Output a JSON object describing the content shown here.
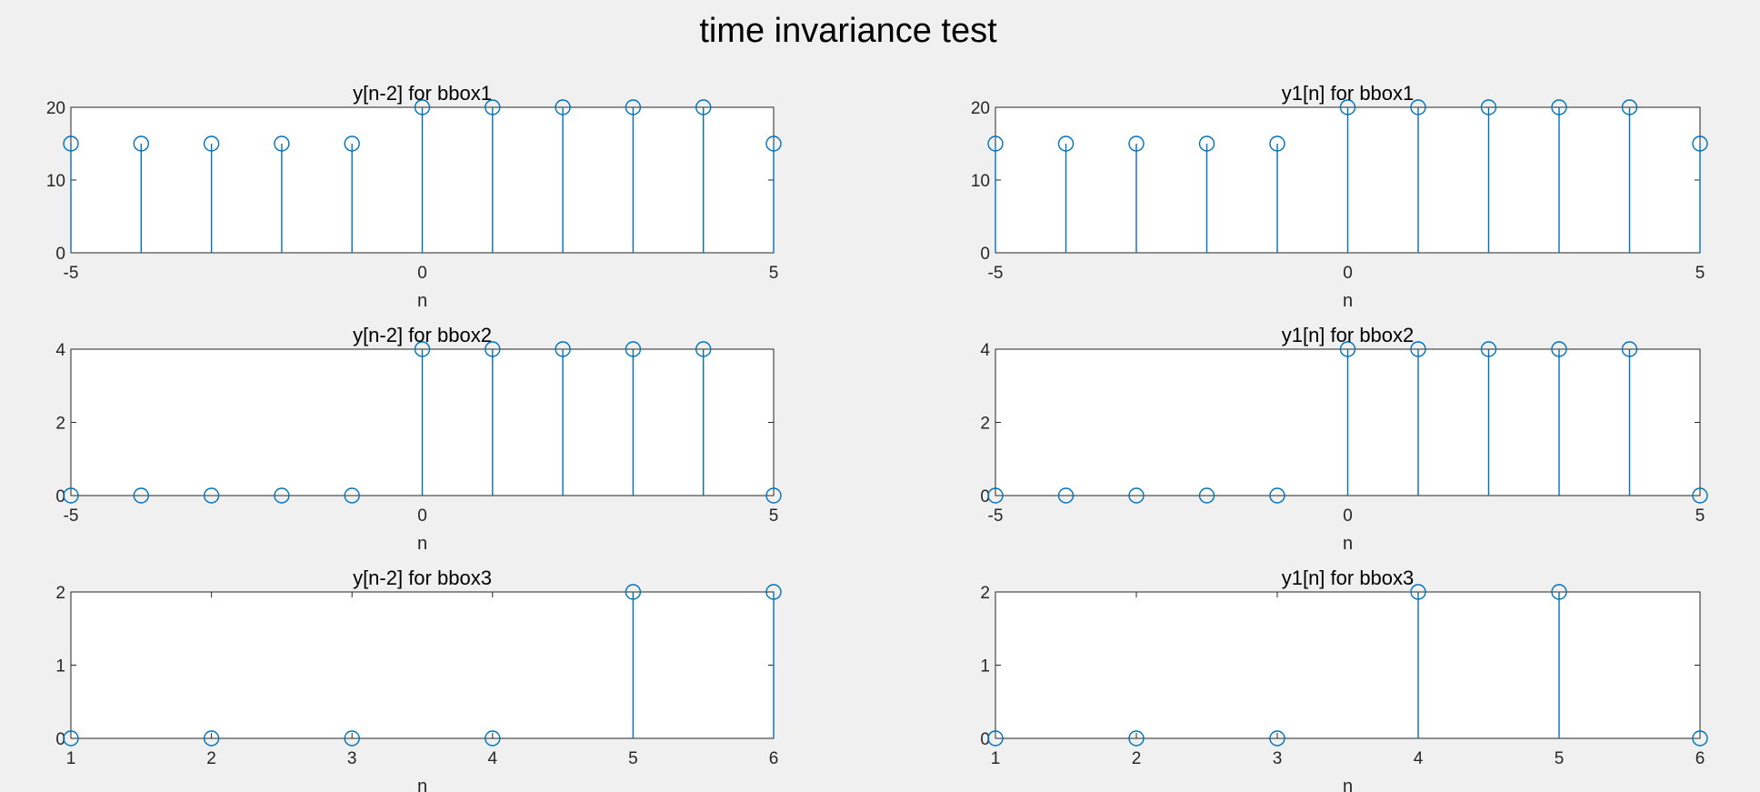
{
  "figure": {
    "title": "time invariance test"
  },
  "colors": {
    "stem": "#0072bd",
    "background": "#f0f0f0",
    "axes_bg": "#ffffff",
    "axis_line": "#262626"
  },
  "chart_data": [
    {
      "type": "stem",
      "title": "y[n-2] for bbox1",
      "xlabel": "n",
      "ylabel": "",
      "x": [
        -5,
        -4,
        -3,
        -2,
        -1,
        0,
        1,
        2,
        3,
        4,
        5
      ],
      "y": [
        15,
        15,
        15,
        15,
        15,
        20,
        20,
        20,
        20,
        20,
        15
      ],
      "xlim": [
        -5,
        5
      ],
      "ylim": [
        0,
        20
      ],
      "xticks": [
        -5,
        0,
        5
      ],
      "yticks": [
        0,
        10,
        20
      ],
      "grid": false
    },
    {
      "type": "stem",
      "title": "y1[n] for bbox1",
      "xlabel": "n",
      "ylabel": "",
      "x": [
        -5,
        -4,
        -3,
        -2,
        -1,
        0,
        1,
        2,
        3,
        4,
        5
      ],
      "y": [
        15,
        15,
        15,
        15,
        15,
        20,
        20,
        20,
        20,
        20,
        15
      ],
      "xlim": [
        -5,
        5
      ],
      "ylim": [
        0,
        20
      ],
      "xticks": [
        -5,
        0,
        5
      ],
      "yticks": [
        0,
        10,
        20
      ],
      "grid": false
    },
    {
      "type": "stem",
      "title": "y[n-2] for bbox2",
      "xlabel": "n",
      "ylabel": "",
      "x": [
        -5,
        -4,
        -3,
        -2,
        -1,
        0,
        1,
        2,
        3,
        4,
        5
      ],
      "y": [
        0,
        0,
        0,
        0,
        0,
        4,
        4,
        4,
        4,
        4,
        0
      ],
      "xlim": [
        -5,
        5
      ],
      "ylim": [
        0,
        4
      ],
      "xticks": [
        -5,
        0,
        5
      ],
      "yticks": [
        0,
        2,
        4
      ],
      "grid": false
    },
    {
      "type": "stem",
      "title": "y1[n] for bbox2",
      "xlabel": "n",
      "ylabel": "",
      "x": [
        -5,
        -4,
        -3,
        -2,
        -1,
        0,
        1,
        2,
        3,
        4,
        5
      ],
      "y": [
        0,
        0,
        0,
        0,
        0,
        4,
        4,
        4,
        4,
        4,
        0
      ],
      "xlim": [
        -5,
        5
      ],
      "ylim": [
        0,
        4
      ],
      "xticks": [
        -5,
        0,
        5
      ],
      "yticks": [
        0,
        2,
        4
      ],
      "grid": false
    },
    {
      "type": "stem",
      "title": "y[n-2] for bbox3",
      "xlabel": "n",
      "ylabel": "",
      "x": [
        1,
        2,
        3,
        4,
        5,
        6
      ],
      "y": [
        0,
        0,
        0,
        0,
        2,
        2
      ],
      "xlim": [
        1,
        6
      ],
      "ylim": [
        0,
        2
      ],
      "xticks": [
        1,
        2,
        3,
        4,
        5,
        6
      ],
      "yticks": [
        0,
        1,
        2
      ],
      "grid": false
    },
    {
      "type": "stem",
      "title": "y1[n] for bbox3",
      "xlabel": "n",
      "ylabel": "",
      "x": [
        1,
        2,
        3,
        4,
        5,
        6
      ],
      "y": [
        0,
        0,
        0,
        2,
        2,
        0
      ],
      "xlim": [
        1,
        6
      ],
      "ylim": [
        0,
        2
      ],
      "xticks": [
        1,
        2,
        3,
        4,
        5,
        6
      ],
      "yticks": [
        0,
        1,
        2
      ],
      "grid": false
    }
  ]
}
